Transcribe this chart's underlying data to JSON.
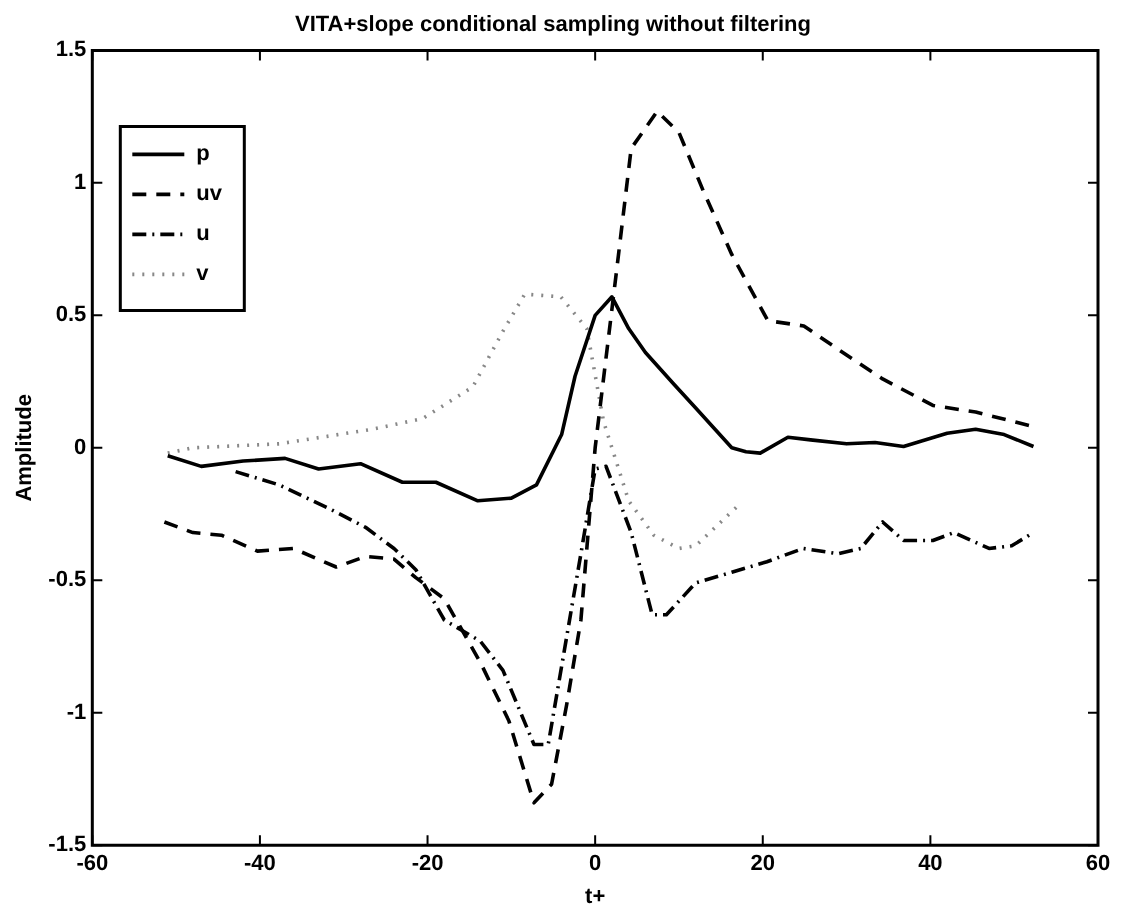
{
  "chart_data": {
    "type": "line",
    "title": "VITA+slope conditional sampling without filtering",
    "xlabel": "t+",
    "ylabel": "Amplitude",
    "xlim": [
      -60,
      60
    ],
    "xticks": [
      -60,
      -40,
      -20,
      0,
      20,
      40,
      60
    ],
    "ylim": [
      -1.5,
      1.5
    ],
    "yticks": [
      -1.5,
      -1,
      -0.5,
      0,
      0.5,
      1,
      1.5
    ],
    "grid": false,
    "legend": "top left",
    "marker": "none",
    "series": [
      {
        "name": "p",
        "color": "#000000",
        "line_style": "solid",
        "x": [
          -51,
          -47,
          -42,
          -37,
          -33,
          -28,
          -23,
          -19,
          -14,
          -10,
          -7,
          -4,
          -2.4,
          0,
          2,
          4,
          6,
          9.4,
          12,
          16.3,
          18,
          19.7,
          23,
          25.7,
          30,
          33.4,
          36.8,
          42,
          45.4,
          48.8,
          52.3
        ],
        "values": [
          -0.03,
          -0.07,
          -0.05,
          -0.04,
          -0.08,
          -0.06,
          -0.13,
          -0.13,
          -0.2,
          -0.19,
          -0.14,
          0.05,
          0.27,
          0.5,
          0.57,
          0.45,
          0.36,
          0.24,
          0.15,
          0,
          -0.015,
          -0.02,
          0.04,
          0.03,
          0.015,
          0.02,
          0.005,
          0.055,
          0.07,
          0.05,
          0.005
        ]
      },
      {
        "name": "uv",
        "color": "#000000",
        "line_style": "dashed",
        "x": [
          -51.4,
          -48,
          -44.6,
          -40.3,
          -36,
          -30.9,
          -27.4,
          -24,
          -21.4,
          -18,
          -13.7,
          -10.3,
          -7.3,
          -5.2,
          -3.4,
          -1.7,
          0,
          2.6,
          4.3,
          7.4,
          10,
          12.9,
          16.3,
          20.6,
          24.9,
          30,
          34.3,
          40.3,
          45.4,
          52.3
        ],
        "values": [
          -0.28,
          -0.32,
          -0.33,
          -0.39,
          -0.38,
          -0.45,
          -0.41,
          -0.42,
          -0.49,
          -0.57,
          -0.81,
          -1.03,
          -1.34,
          -1.27,
          -0.97,
          -0.65,
          0,
          0.68,
          1.13,
          1.27,
          1.19,
          0.97,
          0.73,
          0.48,
          0.46,
          0.35,
          0.26,
          0.16,
          0.135,
          0.08
        ]
      },
      {
        "name": "u",
        "color": "#000000",
        "line_style": "dashdot",
        "x": [
          -42.9,
          -37.7,
          -31.7,
          -27.4,
          -24,
          -21.4,
          -18,
          -13.7,
          -11,
          -7.3,
          -5.6,
          -1.7,
          0,
          1.3,
          4.3,
          6.8,
          8.5,
          12,
          16.3,
          20.5,
          24.8,
          29,
          31.7,
          34.3,
          36.8,
          40.3,
          42.8,
          47,
          49.7,
          52.3
        ],
        "values": [
          -0.09,
          -0.14,
          -0.23,
          -0.3,
          -0.38,
          -0.46,
          -0.65,
          -0.73,
          -0.84,
          -1.12,
          -1.12,
          -0.4,
          -0.08,
          -0.07,
          -0.32,
          -0.63,
          -0.63,
          -0.51,
          -0.47,
          -0.43,
          -0.38,
          -0.4,
          -0.38,
          -0.28,
          -0.35,
          -0.35,
          -0.32,
          -0.38,
          -0.37,
          -0.32
        ]
      },
      {
        "name": "v",
        "color": "#888888",
        "line_style": "dotted",
        "x": [
          -51,
          -48,
          -37.7,
          -26.6,
          -20.6,
          -14.6,
          -11,
          -8.4,
          -4.1,
          -1,
          1,
          4,
          7,
          10,
          12,
          17
        ],
        "values": [
          -0.02,
          0,
          0.015,
          0.07,
          0.11,
          0.23,
          0.44,
          0.58,
          0.57,
          0.45,
          0.1,
          -0.2,
          -0.33,
          -0.38,
          -0.37,
          -0.22
        ]
      }
    ]
  }
}
